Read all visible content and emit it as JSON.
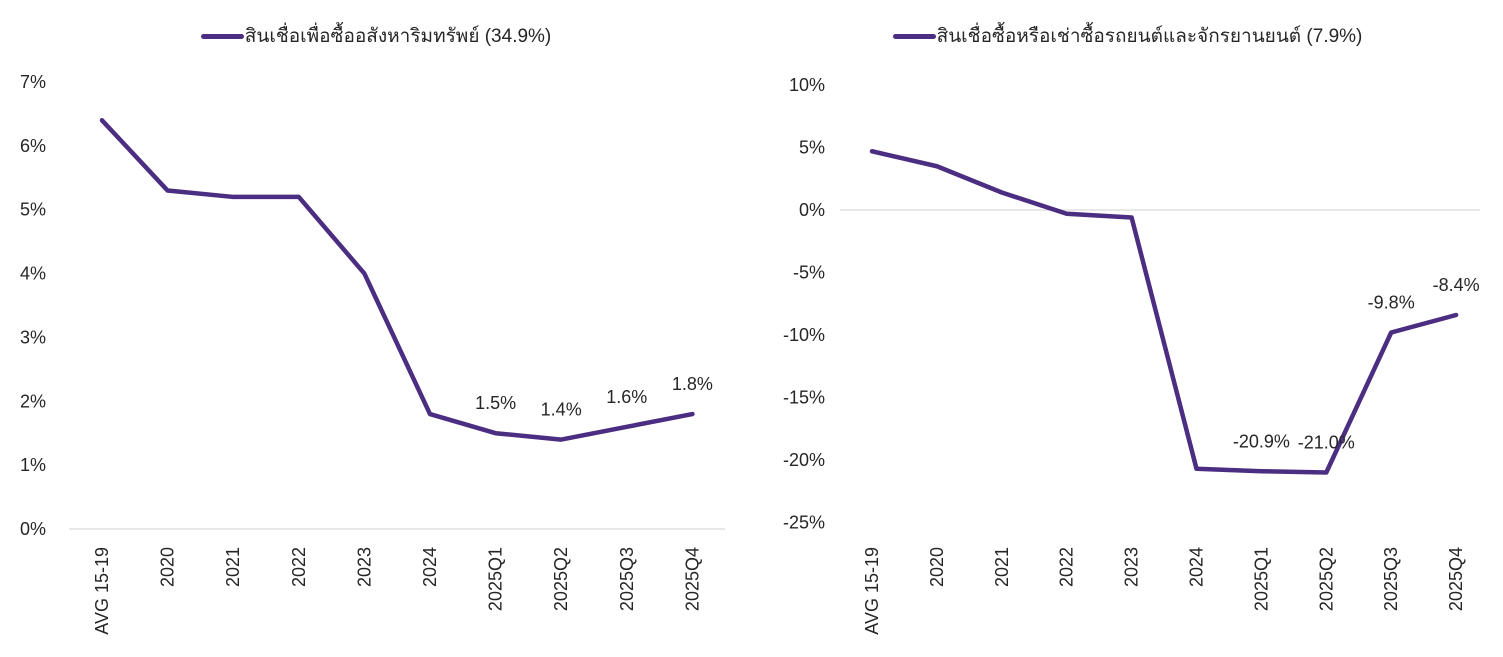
{
  "figure": {
    "background": "#ffffff",
    "text_color": "#262626",
    "gridline_color": "#d9d9d9"
  },
  "chart_data": [
    {
      "type": "line",
      "legend": "สินเชื่อเพื่อซื้ออสังหาริมทรัพย์ (34.9%)",
      "line_color": "#4b2d82",
      "categories": [
        "AVG 15-19",
        "2020",
        "2021",
        "2022",
        "2023",
        "2024",
        "2025Q1",
        "2025Q2",
        "2025Q3",
        "2025Q4"
      ],
      "values": [
        6.4,
        5.3,
        5.2,
        5.2,
        4.0,
        1.8,
        1.5,
        1.4,
        1.6,
        1.8
      ],
      "data_labels": [
        null,
        null,
        null,
        null,
        null,
        null,
        "1.5%",
        "1.4%",
        "1.6%",
        "1.8%"
      ],
      "ylim": [
        0,
        7
      ],
      "ytick_step": 1,
      "ytick_values": [
        7,
        6,
        5,
        4,
        3,
        2,
        1,
        0
      ],
      "ytick_labels": [
        "7%",
        "6%",
        "5%",
        "4%",
        "3%",
        "2%",
        "1%",
        "0%"
      ],
      "grid": "zero-baseline-only",
      "legend_position": "top-center",
      "x_label_rotation": -90
    },
    {
      "type": "line",
      "legend": "สินเชื่อซื้อหรือเช่าซื้อรถยนต์และจักรยานยนต์ (7.9%)",
      "line_color": "#4b2d82",
      "categories": [
        "AVG 15-19",
        "2020",
        "2021",
        "2022",
        "2023",
        "2024",
        "2025Q1",
        "2025Q2",
        "2025Q3",
        "2025Q4"
      ],
      "values": [
        4.7,
        3.5,
        1.4,
        -0.3,
        -0.6,
        -20.7,
        -20.9,
        -21.0,
        -9.8,
        -8.4
      ],
      "data_labels": [
        null,
        null,
        null,
        null,
        null,
        null,
        "-20.9%",
        "-21.0%",
        "-9.8%",
        "-8.4%"
      ],
      "ylim": [
        -25,
        10
      ],
      "ytick_step": 5,
      "ytick_values": [
        10,
        5,
        0,
        -5,
        -10,
        -15,
        -20,
        -25
      ],
      "ytick_labels": [
        "10%",
        "5%",
        "0%",
        "-5%",
        "-10%",
        "-15%",
        "-20%",
        "-25%"
      ],
      "grid": "zero-baseline-only",
      "legend_position": "top-center",
      "x_label_rotation": -90
    }
  ]
}
